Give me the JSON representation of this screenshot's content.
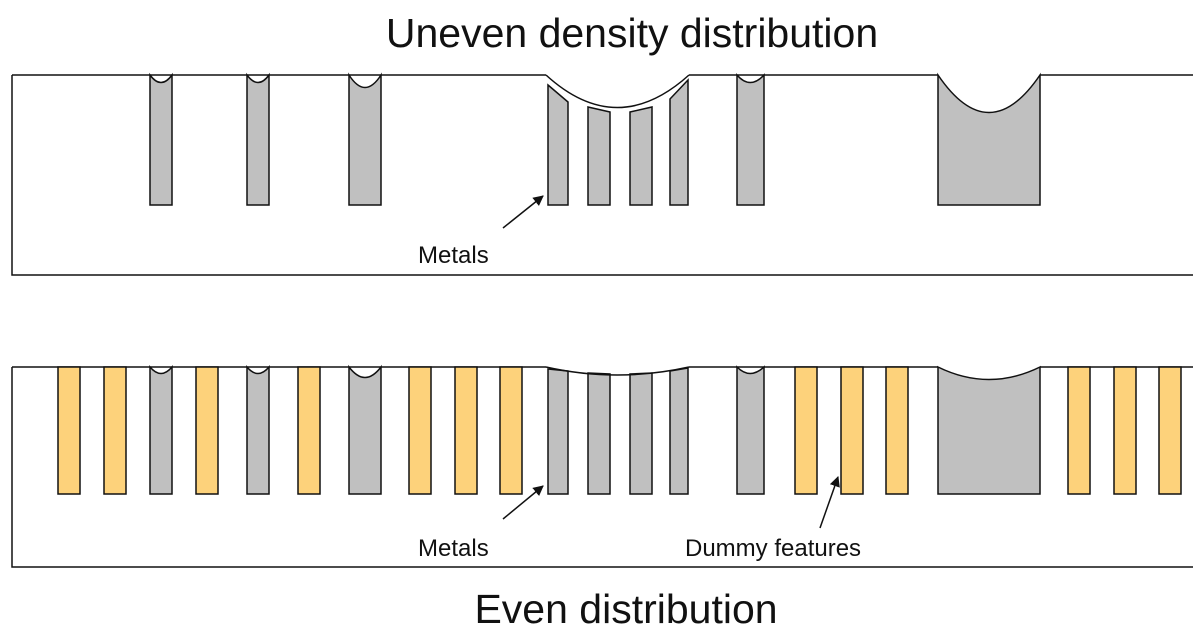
{
  "colors": {
    "metal": "#c0c0c0",
    "dummy": "#fdd27b",
    "outline": "#111111",
    "background": "#ffffff"
  },
  "top_panel": {
    "title": "Uneven density distribution",
    "metals_label": "Metals"
  },
  "bottom_panel": {
    "title": "Even distribution",
    "metals_label": "Metals",
    "dummy_label": "Dummy features"
  }
}
